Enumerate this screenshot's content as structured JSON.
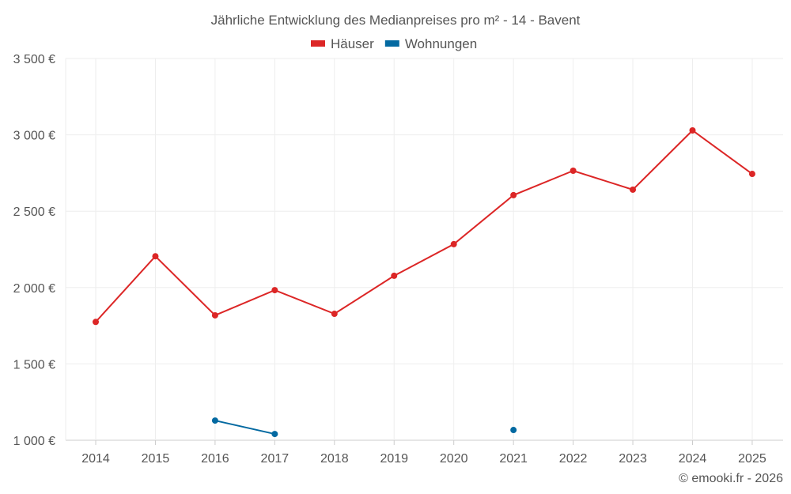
{
  "chart_data": {
    "type": "line",
    "title": "Jährliche Entwicklung des Medianpreises pro m² - 14 - Bavent",
    "x": [
      2014,
      2015,
      2016,
      2017,
      2018,
      2019,
      2020,
      2021,
      2022,
      2023,
      2024,
      2025
    ],
    "xticks": [
      "2014",
      "2015",
      "2016",
      "2017",
      "2018",
      "2019",
      "2020",
      "2021",
      "2022",
      "2023",
      "2024",
      "2025"
    ],
    "yticks": [
      "1 000 €",
      "1 500 €",
      "2 000 €",
      "2 500 €",
      "3 000 €",
      "3 500 €"
    ],
    "ytick_values": [
      1000,
      1500,
      2000,
      2500,
      3000,
      3500
    ],
    "ylim": [
      1000,
      3500
    ],
    "grid": true,
    "legend_position": "top-center",
    "series": [
      {
        "name": "Häuser",
        "color": "#dc2626",
        "values": [
          1775,
          2205,
          1818,
          1983,
          1828,
          2077,
          2284,
          2605,
          2765,
          2641,
          3029,
          2744
        ]
      },
      {
        "name": "Wohnungen",
        "color": "#0369a1",
        "values": [
          null,
          null,
          1129,
          1041,
          null,
          null,
          null,
          1067,
          null,
          null,
          null,
          null
        ]
      }
    ],
    "credit": "© emooki.fr - 2026"
  }
}
